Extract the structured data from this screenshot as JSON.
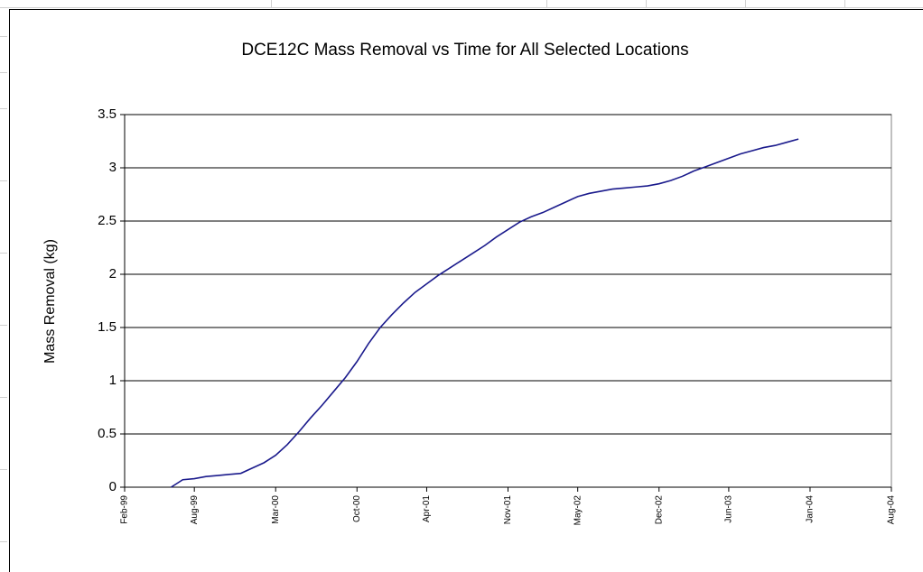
{
  "chart_data": {
    "type": "line",
    "title": "DCE12C Mass Removal vs Time for All Selected Locations",
    "y_label": "Mass Removal (kg)",
    "x": [
      "1999-06",
      "1999-07",
      "1999-08",
      "1999-09",
      "1999-10",
      "1999-11",
      "1999-12",
      "2000-01",
      "2000-02",
      "2000-03",
      "2000-04",
      "2000-05",
      "2000-06",
      "2000-07",
      "2000-08",
      "2000-09",
      "2000-10",
      "2000-11",
      "2000-12",
      "2001-01",
      "2001-02",
      "2001-03",
      "2001-04",
      "2001-05",
      "2001-06",
      "2001-07",
      "2001-08",
      "2001-09",
      "2001-10",
      "2001-11",
      "2001-12",
      "2002-01",
      "2002-02",
      "2002-03",
      "2002-04",
      "2002-05",
      "2002-06",
      "2002-07",
      "2002-08",
      "2002-09",
      "2002-10",
      "2002-11",
      "2002-12",
      "2003-01",
      "2003-02",
      "2003-03",
      "2003-04",
      "2003-05",
      "2003-06",
      "2003-07",
      "2003-08",
      "2003-09",
      "2003-10",
      "2003-11",
      "2003-12"
    ],
    "series": [
      {
        "name": "DCE12C",
        "color": "#1a1a8c",
        "values": [
          0,
          0.07,
          0.08,
          0.1,
          0.11,
          0.12,
          0.13,
          0.18,
          0.23,
          0.3,
          0.4,
          0.52,
          0.65,
          0.77,
          0.9,
          1.03,
          1.18,
          1.35,
          1.5,
          1.62,
          1.73,
          1.83,
          1.91,
          1.99,
          2.06,
          2.13,
          2.2,
          2.27,
          2.35,
          2.42,
          2.49,
          2.54,
          2.58,
          2.63,
          2.68,
          2.73,
          2.76,
          2.78,
          2.8,
          2.81,
          2.82,
          2.83,
          2.85,
          2.88,
          2.92,
          2.97,
          3.01,
          3.05,
          3.09,
          3.13,
          3.16,
          3.19,
          3.21,
          3.24,
          3.27
        ]
      }
    ],
    "xlim": [
      "1999-02",
      "2004-08"
    ],
    "xticks": [
      {
        "value": "1999-02",
        "label": "Feb-99"
      },
      {
        "value": "1999-08",
        "label": "Aug-99"
      },
      {
        "value": "2000-03",
        "label": "Mar-00"
      },
      {
        "value": "2000-10",
        "label": "Oct-00"
      },
      {
        "value": "2001-04",
        "label": "Apr-01"
      },
      {
        "value": "2001-11",
        "label": "Nov-01"
      },
      {
        "value": "2002-05",
        "label": "May-02"
      },
      {
        "value": "2002-12",
        "label": "Dec-02"
      },
      {
        "value": "2003-06",
        "label": "Jun-03"
      },
      {
        "value": "2004-01",
        "label": "Jan-04"
      },
      {
        "value": "2004-08",
        "label": "Aug-04"
      }
    ],
    "ylim": [
      0,
      3.5
    ],
    "yticks": [
      0,
      0.5,
      1,
      1.5,
      2,
      2.5,
      3,
      3.5
    ],
    "grid": true
  }
}
